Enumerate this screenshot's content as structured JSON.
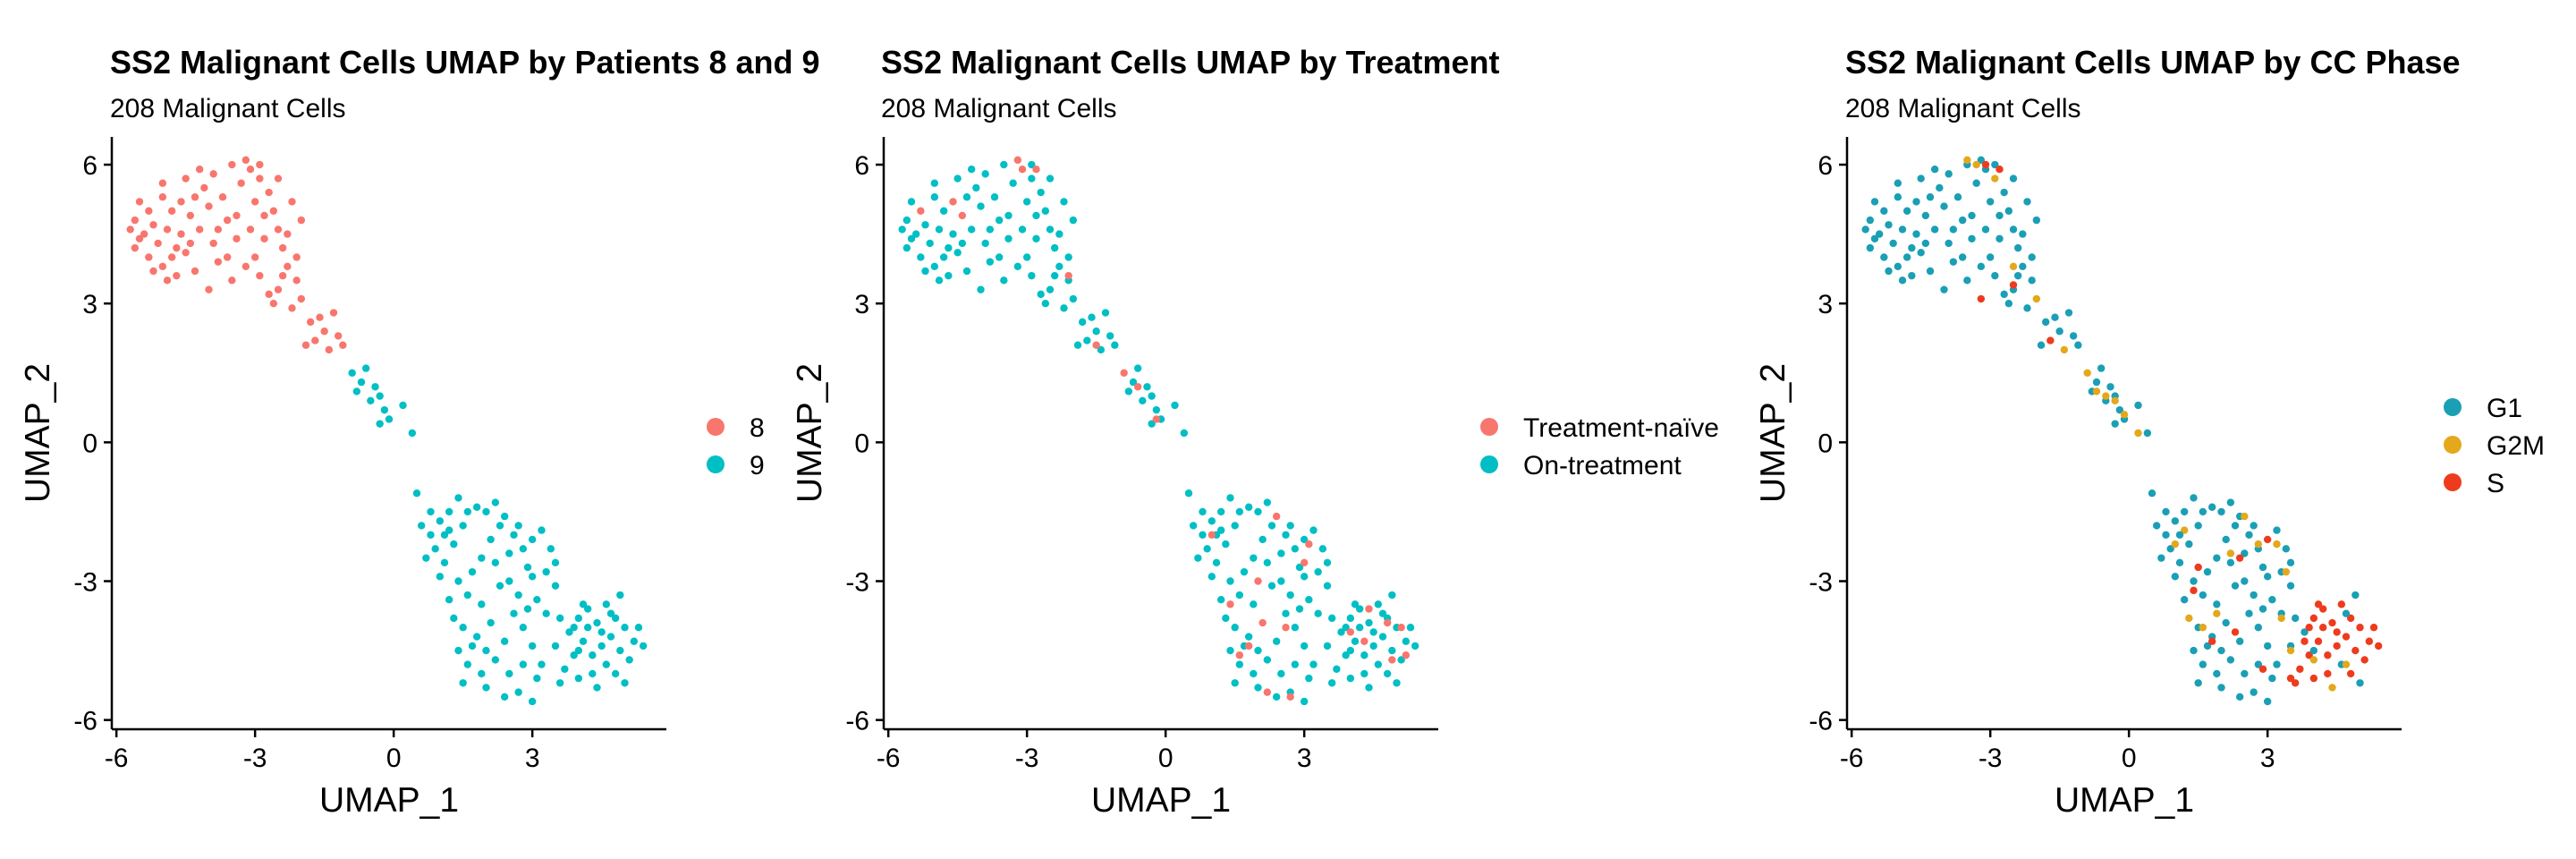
{
  "chart_data": [
    {
      "type": "scatter",
      "title": "SS2 Malignant Cells UMAP by Patients 8 and 9",
      "subtitle": "208 Malignant Cells",
      "xlabel": "UMAP_1",
      "ylabel": "UMAP_2",
      "xlim": [
        -6.1,
        5.9
      ],
      "ylim": [
        -6.2,
        6.6
      ],
      "xticks": [
        -6,
        -3,
        0,
        3
      ],
      "xtick_labels": [
        "-6",
        "-3",
        "0",
        "3"
      ],
      "yticks": [
        -6,
        -3,
        0,
        3,
        6
      ],
      "ytick_labels": [
        "-6",
        "-3",
        "0",
        "3",
        "6"
      ],
      "legend": [
        {
          "label": "8",
          "color": "#F8766D"
        },
        {
          "label": "9",
          "color": "#00BFC4"
        }
      ],
      "series_note": "Patient 8 = upper-left cluster (y > 2); Patient 9 = bridge and lower clusters"
    },
    {
      "type": "scatter",
      "title": "SS2 Malignant Cells UMAP by Treatment",
      "subtitle": "208 Malignant Cells",
      "xlabel": "UMAP_1",
      "ylabel": "UMAP_2",
      "xlim": [
        -6.1,
        5.9
      ],
      "ylim": [
        -6.2,
        6.6
      ],
      "xticks": [
        -6,
        -3,
        0,
        3
      ],
      "xtick_labels": [
        "-6",
        "-3",
        "0",
        "3"
      ],
      "yticks": [
        -6,
        -3,
        0,
        3,
        6
      ],
      "ytick_labels": [
        "-6",
        "-3",
        "0",
        "3",
        "6"
      ],
      "legend": [
        {
          "label": "Treatment-naïve",
          "color": "#F8766D"
        },
        {
          "label": "On-treatment",
          "color": "#00BFC4"
        }
      ],
      "series_note": "Mostly on-treatment; treatment-naïve cells scattered"
    },
    {
      "type": "scatter",
      "title": "SS2 Malignant Cells UMAP by CC Phase",
      "subtitle": "208 Malignant Cells",
      "xlabel": "UMAP_1",
      "ylabel": "UMAP_2",
      "xlim": [
        -6.1,
        5.9
      ],
      "ylim": [
        -6.2,
        6.6
      ],
      "xticks": [
        -6,
        -3,
        0,
        3
      ],
      "xtick_labels": [
        "-6",
        "-3",
        "0",
        "3"
      ],
      "yticks": [
        -6,
        -3,
        0,
        3,
        6
      ],
      "ytick_labels": [
        "-6",
        "-3",
        "0",
        "3",
        "6"
      ],
      "legend": [
        {
          "label": "G1",
          "color": "#1A9FB5"
        },
        {
          "label": "G2M",
          "color": "#E3A81B"
        },
        {
          "label": "S",
          "color": "#EE3B1E"
        }
      ],
      "series_note": "Mostly G1; S concentrated in lower-right cluster; G2M scattered"
    }
  ],
  "points": [
    [
      -5.5,
      5.2
    ],
    [
      -5.3,
      5.0
    ],
    [
      -5.6,
      4.8
    ],
    [
      -5.2,
      4.7
    ],
    [
      -5.0,
      5.3
    ],
    [
      -4.8,
      5.0
    ],
    [
      -5.4,
      4.5
    ],
    [
      -5.1,
      4.3
    ],
    [
      -4.9,
      4.6
    ],
    [
      -4.7,
      4.2
    ],
    [
      -5.6,
      4.2
    ],
    [
      -5.3,
      4.0
    ],
    [
      -5.0,
      3.8
    ],
    [
      -4.6,
      4.5
    ],
    [
      -4.4,
      4.9
    ],
    [
      -4.5,
      4.1
    ],
    [
      -4.2,
      4.6
    ],
    [
      -4.0,
      5.1
    ],
    [
      -3.9,
      4.3
    ],
    [
      -3.8,
      3.9
    ],
    [
      -4.3,
      3.7
    ],
    [
      -4.7,
      3.6
    ],
    [
      -5.2,
      3.7
    ],
    [
      -4.1,
      5.5
    ],
    [
      -3.7,
      5.3
    ],
    [
      -3.6,
      4.8
    ],
    [
      -3.4,
      4.4
    ],
    [
      -3.3,
      5.6
    ],
    [
      -3.1,
      5.9
    ],
    [
      -2.9,
      5.7
    ],
    [
      -2.7,
      5.4
    ],
    [
      -2.6,
      5.0
    ],
    [
      -2.5,
      4.6
    ],
    [
      -2.8,
      4.4
    ],
    [
      -3.0,
      4.0
    ],
    [
      -3.2,
      3.8
    ],
    [
      -2.4,
      4.2
    ],
    [
      -2.3,
      3.8
    ],
    [
      -2.1,
      3.5
    ],
    [
      -2.0,
      3.1
    ],
    [
      -2.2,
      2.9
    ],
    [
      -1.8,
      2.6
    ],
    [
      -1.7,
      2.2
    ],
    [
      -1.5,
      2.4
    ],
    [
      -1.4,
      2.0
    ],
    [
      -1.2,
      2.3
    ],
    [
      -1.3,
      2.8
    ],
    [
      -1.9,
      2.1
    ],
    [
      -2.5,
      3.3
    ],
    [
      -2.9,
      3.6
    ],
    [
      -3.5,
      3.5
    ],
    [
      -4.0,
      3.3
    ],
    [
      -4.5,
      5.7
    ],
    [
      -3.5,
      6.0
    ],
    [
      -3.2,
      6.1
    ],
    [
      -2.9,
      6.0
    ],
    [
      -2.5,
      5.7
    ],
    [
      -2.2,
      5.2
    ],
    [
      -2.0,
      4.8
    ],
    [
      -2.3,
      4.5
    ],
    [
      -3.8,
      4.6
    ],
    [
      -4.8,
      4.0
    ],
    [
      -5.5,
      4.4
    ],
    [
      -4.4,
      4.3
    ],
    [
      -3.6,
      4.0
    ],
    [
      -3.1,
      4.6
    ],
    [
      -2.7,
      3.2
    ],
    [
      -2.1,
      4.0
    ],
    [
      -4.6,
      5.2
    ],
    [
      -3.9,
      5.8
    ],
    [
      -0.9,
      1.5
    ],
    [
      -0.7,
      1.3
    ],
    [
      -0.8,
      1.1
    ],
    [
      -0.5,
      0.9
    ],
    [
      -0.3,
      1.0
    ],
    [
      -0.2,
      0.7
    ],
    [
      -0.1,
      0.5
    ],
    [
      0.4,
      0.2
    ],
    [
      -0.6,
      1.6
    ],
    [
      -0.4,
      1.2
    ],
    [
      0.5,
      -1.1
    ],
    [
      0.6,
      -1.8
    ],
    [
      0.8,
      -2.0
    ],
    [
      1.0,
      -1.7
    ],
    [
      1.2,
      -1.9
    ],
    [
      0.9,
      -2.3
    ],
    [
      0.7,
      -2.5
    ],
    [
      1.1,
      -2.6
    ],
    [
      1.3,
      -2.2
    ],
    [
      1.5,
      -1.8
    ],
    [
      1.6,
      -1.5
    ],
    [
      1.8,
      -1.4
    ],
    [
      2.0,
      -1.5
    ],
    [
      2.2,
      -1.3
    ],
    [
      2.4,
      -1.6
    ],
    [
      2.6,
      -2.0
    ],
    [
      2.8,
      -2.3
    ],
    [
      3.0,
      -2.1
    ],
    [
      3.2,
      -1.9
    ],
    [
      3.4,
      -2.3
    ],
    [
      3.5,
      -2.6
    ],
    [
      3.3,
      -2.8
    ],
    [
      2.9,
      -2.7
    ],
    [
      2.5,
      -2.4
    ],
    [
      2.1,
      -2.1
    ],
    [
      1.9,
      -2.5
    ],
    [
      1.7,
      -2.8
    ],
    [
      1.4,
      -3.0
    ],
    [
      1.6,
      -3.3
    ],
    [
      1.9,
      -3.5
    ],
    [
      2.3,
      -3.1
    ],
    [
      2.7,
      -3.3
    ],
    [
      3.1,
      -3.4
    ],
    [
      1.3,
      -3.8
    ],
    [
      1.5,
      -4.0
    ],
    [
      1.8,
      -4.2
    ],
    [
      2.1,
      -3.9
    ],
    [
      2.4,
      -4.3
    ],
    [
      2.8,
      -4.0
    ],
    [
      3.0,
      -4.4
    ],
    [
      1.4,
      -4.5
    ],
    [
      1.6,
      -4.8
    ],
    [
      1.9,
      -5.0
    ],
    [
      2.2,
      -4.7
    ],
    [
      2.5,
      -5.0
    ],
    [
      2.8,
      -4.8
    ],
    [
      3.1,
      -5.1
    ],
    [
      2.0,
      -5.3
    ],
    [
      2.4,
      -5.5
    ],
    [
      2.7,
      -5.4
    ],
    [
      3.0,
      -5.6
    ],
    [
      1.7,
      -4.4
    ],
    [
      2.6,
      -3.7
    ],
    [
      3.3,
      -3.7
    ],
    [
      1.2,
      -3.4
    ],
    [
      2.2,
      -2.6
    ],
    [
      3.0,
      -2.9
    ],
    [
      1.1,
      -2.0
    ],
    [
      2.3,
      -1.8
    ],
    [
      0.8,
      -1.5
    ],
    [
      3.8,
      -4.1
    ],
    [
      4.0,
      -3.8
    ],
    [
      4.2,
      -3.6
    ],
    [
      4.4,
      -3.9
    ],
    [
      4.6,
      -3.5
    ],
    [
      4.8,
      -3.8
    ],
    [
      5.0,
      -4.0
    ],
    [
      5.2,
      -4.3
    ],
    [
      4.9,
      -4.5
    ],
    [
      4.7,
      -4.2
    ],
    [
      4.5,
      -4.4
    ],
    [
      4.3,
      -4.6
    ],
    [
      4.1,
      -4.3
    ],
    [
      3.9,
      -4.6
    ],
    [
      3.7,
      -4.9
    ],
    [
      4.0,
      -5.1
    ],
    [
      4.3,
      -5.0
    ],
    [
      4.6,
      -4.8
    ],
    [
      4.8,
      -5.0
    ],
    [
      5.1,
      -4.7
    ],
    [
      4.4,
      -5.3
    ],
    [
      3.6,
      -5.2
    ],
    [
      5.3,
      -4.0
    ],
    [
      4.1,
      -3.5
    ],
    [
      3.5,
      -4.4
    ],
    [
      4.7,
      -3.7
    ],
    [
      5.0,
      -5.2
    ],
    [
      3.9,
      -4.0
    ],
    [
      4.2,
      -4.0
    ],
    [
      4.5,
      -4.1
    ],
    [
      -5.7,
      4.6
    ],
    [
      -5.0,
      5.6
    ],
    [
      -4.2,
      5.9
    ],
    [
      -3.0,
      5.2
    ],
    [
      -2.4,
      3.6
    ],
    [
      -1.6,
      2.7
    ],
    [
      -2.6,
      3.0
    ],
    [
      -3.4,
      4.9
    ],
    [
      -4.3,
      5.3
    ],
    [
      -1.1,
      2.1
    ],
    [
      1.2,
      -1.5
    ],
    [
      2.7,
      -1.8
    ],
    [
      3.5,
      -3.1
    ],
    [
      1.0,
      -2.9
    ],
    [
      2.0,
      -4.5
    ],
    [
      2.9,
      -3.6
    ],
    [
      3.2,
      -4.8
    ],
    [
      1.5,
      -5.2
    ],
    [
      4.9,
      -3.3
    ],
    [
      5.4,
      -4.4
    ],
    [
      -4.9,
      3.5
    ],
    [
      -2.8,
      4.9
    ],
    [
      0.2,
      0.8
    ],
    [
      -0.3,
      0.4
    ],
    [
      1.4,
      -1.2
    ],
    [
      2.5,
      -3.0
    ],
    [
      4.0,
      -4.5
    ],
    [
      3.6,
      -3.8
    ]
  ],
  "panel2_red": [
    [
      -5.3,
      5.0
    ],
    [
      -4.4,
      4.9
    ],
    [
      -3.2,
      6.1
    ],
    [
      -3.1,
      5.9
    ],
    [
      -2.8,
      5.9
    ],
    [
      -4.6,
      5.2
    ],
    [
      -2.1,
      3.6
    ],
    [
      -1.5,
      2.1
    ],
    [
      -0.9,
      1.5
    ],
    [
      -0.6,
      1.2
    ],
    [
      -0.2,
      0.5
    ],
    [
      2.4,
      -1.6
    ],
    [
      1.0,
      -2.0
    ],
    [
      1.4,
      -3.5
    ],
    [
      2.1,
      -3.9
    ],
    [
      2.6,
      -4.0
    ],
    [
      1.6,
      -4.6
    ],
    [
      2.2,
      -5.4
    ],
    [
      2.7,
      -5.5
    ],
    [
      3.1,
      -2.2
    ],
    [
      4.4,
      -3.6
    ],
    [
      4.8,
      -3.9
    ],
    [
      5.1,
      -4.0
    ],
    [
      4.3,
      -4.3
    ],
    [
      4.9,
      -4.7
    ],
    [
      5.2,
      -4.6
    ],
    [
      2.0,
      -3.0
    ],
    [
      3.0,
      -2.6
    ],
    [
      1.8,
      -4.4
    ],
    [
      4.0,
      -4.1
    ]
  ],
  "panel3_s": [
    [
      -3.1,
      6.0
    ],
    [
      -2.8,
      5.9
    ],
    [
      -3.2,
      3.1
    ],
    [
      -2.5,
      3.4
    ],
    [
      -1.7,
      2.2
    ],
    [
      2.4,
      -2.5
    ],
    [
      3.0,
      -2.1
    ],
    [
      1.5,
      -2.7
    ],
    [
      1.8,
      -4.3
    ],
    [
      2.3,
      -4.1
    ],
    [
      3.5,
      -5.1
    ],
    [
      3.8,
      -4.3
    ],
    [
      4.0,
      -3.8
    ],
    [
      4.2,
      -3.6
    ],
    [
      4.4,
      -3.9
    ],
    [
      4.6,
      -3.5
    ],
    [
      4.8,
      -3.8
    ],
    [
      5.0,
      -4.0
    ],
    [
      5.2,
      -4.3
    ],
    [
      4.9,
      -4.5
    ],
    [
      4.7,
      -4.2
    ],
    [
      4.5,
      -4.4
    ],
    [
      4.3,
      -4.6
    ],
    [
      4.1,
      -4.3
    ],
    [
      3.9,
      -4.6
    ],
    [
      3.7,
      -4.9
    ],
    [
      4.0,
      -5.1
    ],
    [
      4.3,
      -5.0
    ],
    [
      4.8,
      -5.0
    ],
    [
      5.1,
      -4.7
    ],
    [
      3.6,
      -5.2
    ],
    [
      5.3,
      -4.0
    ],
    [
      4.1,
      -3.5
    ],
    [
      3.9,
      -4.0
    ],
    [
      4.2,
      -4.0
    ],
    [
      4.5,
      -4.1
    ],
    [
      5.4,
      -4.4
    ],
    [
      1.4,
      -3.2
    ],
    [
      2.9,
      -4.9
    ]
  ],
  "panel3_g2m": [
    [
      -3.5,
      6.1
    ],
    [
      -3.3,
      6.0
    ],
    [
      -2.9,
      5.7
    ],
    [
      -2.5,
      3.8
    ],
    [
      -2.0,
      3.1
    ],
    [
      -1.4,
      2.0
    ],
    [
      -0.9,
      1.5
    ],
    [
      -0.7,
      1.1
    ],
    [
      -0.5,
      1.0
    ],
    [
      -0.3,
      0.9
    ],
    [
      -0.1,
      0.6
    ],
    [
      0.2,
      0.2
    ],
    [
      1.0,
      -2.2
    ],
    [
      1.2,
      -1.9
    ],
    [
      2.5,
      -1.6
    ],
    [
      2.8,
      -2.2
    ],
    [
      3.2,
      -2.2
    ],
    [
      3.4,
      -2.8
    ],
    [
      1.3,
      -3.8
    ],
    [
      1.6,
      -4.0
    ],
    [
      1.9,
      -3.7
    ],
    [
      3.3,
      -3.8
    ],
    [
      3.5,
      -4.5
    ],
    [
      4.7,
      -4.8
    ],
    [
      4.4,
      -5.3
    ],
    [
      2.2,
      -2.4
    ],
    [
      4.0,
      -4.7
    ]
  ]
}
